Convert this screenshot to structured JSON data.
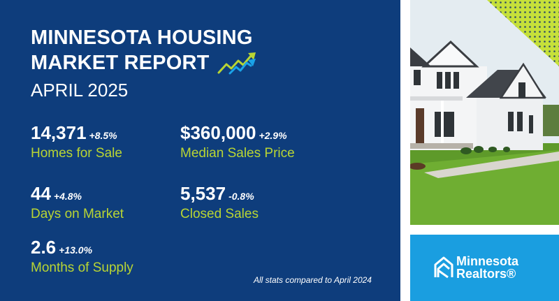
{
  "header": {
    "title_line1": "MINNESOTA HOUSING",
    "title_line2": "MARKET REPORT",
    "subtitle": "APRIL 2025"
  },
  "stats": [
    {
      "value": "14,371",
      "change": "+8.5%",
      "label": "Homes for Sale"
    },
    {
      "value": "$360,000",
      "change": "+2.9%",
      "label": "Median Sales Price"
    },
    {
      "value": "44",
      "change": "+4.8%",
      "label": "Days on Market"
    },
    {
      "value": "5,537",
      "change": "-0.8%",
      "label": "Closed Sales"
    },
    {
      "value": "2.6",
      "change": "+13.0%",
      "label": "Months of Supply"
    }
  ],
  "footnote": "All stats compared to April 2024",
  "brand": {
    "line1": "Minnesota",
    "line2": "Realtors®"
  },
  "icons": {
    "trend": "trending-up-arrows-icon",
    "photo": "house-photo",
    "logo": "minnesota-realtors-logo"
  },
  "colors": {
    "panel": "#0e3d7c",
    "accent_green": "#b9d533",
    "brand_blue": "#1a9ee0"
  }
}
